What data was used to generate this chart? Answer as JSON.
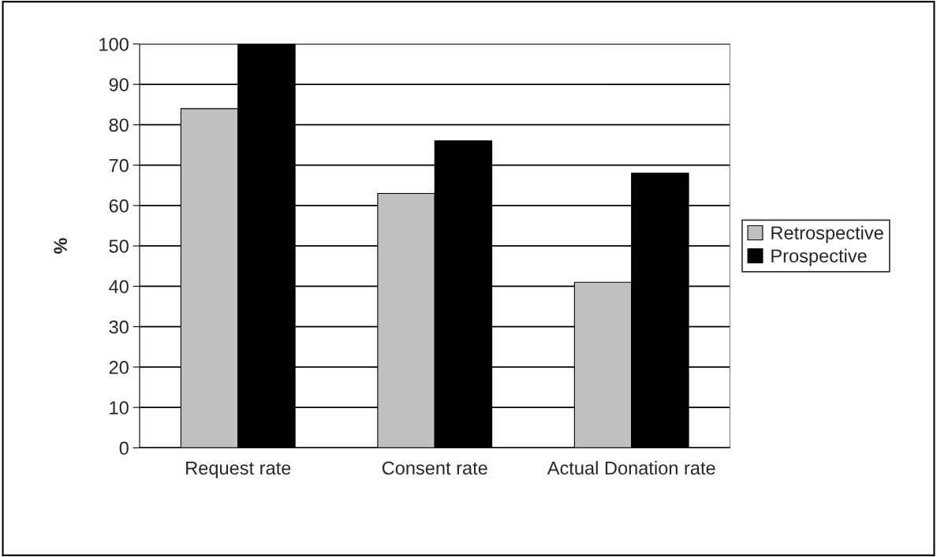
{
  "chart_data": {
    "type": "bar",
    "ylabel": "%",
    "categories": [
      "Request rate",
      "Consent rate",
      "Actual Donation rate"
    ],
    "series": [
      {
        "name": "Retrospective",
        "color": "#c0c0c0",
        "values": [
          84,
          63,
          41
        ]
      },
      {
        "name": "Prospective",
        "color": "#000000",
        "values": [
          100,
          76,
          68
        ]
      }
    ],
    "ylim": [
      0,
      100
    ],
    "yticks": [
      0,
      10,
      20,
      30,
      40,
      50,
      60,
      70,
      80,
      90,
      100
    ],
    "grid": "y",
    "legend": "right"
  }
}
